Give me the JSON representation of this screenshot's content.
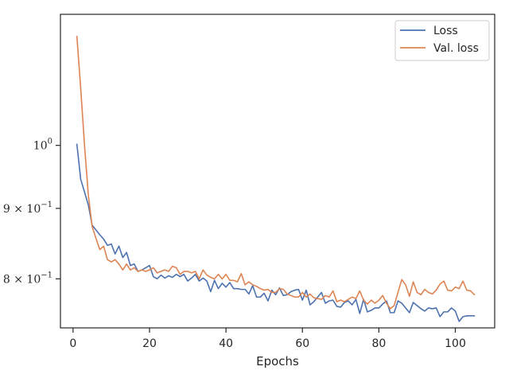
{
  "chart_data": {
    "type": "line",
    "xlabel": "Epochs",
    "ylabel": "",
    "xscale": "linear",
    "yscale": "log",
    "xlim": [
      -3.3,
      110.3
    ],
    "ylim": [
      0.737,
      1.245
    ],
    "xticks": [
      0,
      20,
      40,
      60,
      80,
      100
    ],
    "xtick_labels": [
      "0",
      "20",
      "40",
      "60",
      "80",
      "100"
    ],
    "yticks": [
      {
        "value": 1.0,
        "base": "10",
        "exp": "0",
        "mant": ""
      },
      {
        "value": 0.9,
        "base": "10",
        "exp": "−1",
        "mant": "9 × "
      },
      {
        "value": 0.8,
        "base": "10",
        "exp": "−1",
        "mant": "8 × "
      }
    ],
    "grid": false,
    "legend": "top-right",
    "series": [
      {
        "name": "Loss",
        "color": "#4c72b0",
        "x": [
          1,
          2,
          3,
          4,
          5,
          6,
          7,
          8,
          9,
          10,
          11,
          12,
          13,
          14,
          15,
          16,
          17,
          18,
          19,
          20,
          21,
          22,
          23,
          24,
          25,
          26,
          27,
          28,
          29,
          30,
          31,
          32,
          33,
          34,
          35,
          36,
          37,
          38,
          39,
          40,
          41,
          42,
          43,
          44,
          45,
          46,
          47,
          48,
          49,
          50,
          51,
          52,
          53,
          54,
          55,
          56,
          57,
          58,
          59,
          60,
          61,
          62,
          63,
          64,
          65,
          66,
          67,
          68,
          69,
          70,
          71,
          72,
          73,
          74,
          75,
          76,
          77,
          78,
          79,
          80,
          81,
          82,
          83,
          84,
          85,
          86,
          87,
          88,
          89,
          90,
          91,
          92,
          93,
          94,
          95,
          96,
          97,
          98,
          99,
          100,
          101,
          102,
          103,
          104,
          105
        ],
        "values": [
          1.002,
          0.945,
          0.925,
          0.905,
          0.875,
          0.868,
          0.861,
          0.855,
          0.846,
          0.848,
          0.834,
          0.845,
          0.829,
          0.836,
          0.818,
          0.82,
          0.81,
          0.812,
          0.815,
          0.818,
          0.803,
          0.8,
          0.805,
          0.801,
          0.804,
          0.802,
          0.806,
          0.803,
          0.806,
          0.797,
          0.801,
          0.806,
          0.797,
          0.801,
          0.797,
          0.783,
          0.798,
          0.787,
          0.794,
          0.789,
          0.795,
          0.787,
          0.787,
          0.786,
          0.786,
          0.78,
          0.791,
          0.776,
          0.776,
          0.781,
          0.771,
          0.785,
          0.779,
          0.788,
          0.778,
          0.779,
          0.783,
          0.785,
          0.786,
          0.772,
          0.785,
          0.766,
          0.77,
          0.776,
          0.782,
          0.768,
          0.771,
          0.772,
          0.764,
          0.763,
          0.769,
          0.771,
          0.766,
          0.773,
          0.755,
          0.773,
          0.757,
          0.759,
          0.762,
          0.762,
          0.767,
          0.771,
          0.756,
          0.756,
          0.771,
          0.768,
          0.762,
          0.756,
          0.769,
          0.765,
          0.761,
          0.758,
          0.762,
          0.761,
          0.762,
          0.751,
          0.757,
          0.757,
          0.762,
          0.758,
          0.745,
          0.751,
          0.752,
          0.752,
          0.752
        ]
      },
      {
        "name": "Val. loss",
        "color": "#dd8452",
        "x": [
          1,
          2,
          3,
          4,
          5,
          6,
          7,
          8,
          9,
          10,
          11,
          12,
          13,
          14,
          15,
          16,
          17,
          18,
          19,
          20,
          21,
          22,
          23,
          24,
          25,
          26,
          27,
          28,
          29,
          30,
          31,
          32,
          33,
          34,
          35,
          36,
          37,
          38,
          39,
          40,
          41,
          42,
          43,
          44,
          45,
          46,
          47,
          48,
          49,
          50,
          51,
          52,
          53,
          54,
          55,
          56,
          57,
          58,
          59,
          60,
          61,
          62,
          63,
          64,
          65,
          66,
          67,
          68,
          69,
          70,
          71,
          72,
          73,
          74,
          75,
          76,
          77,
          78,
          79,
          80,
          81,
          82,
          83,
          84,
          85,
          86,
          87,
          88,
          89,
          90,
          91,
          92,
          93,
          94,
          95,
          96,
          97,
          98,
          99,
          100,
          101,
          102,
          103,
          104,
          105
        ],
        "values": [
          1.2,
          1.1,
          1.0,
          0.92,
          0.873,
          0.856,
          0.84,
          0.845,
          0.826,
          0.823,
          0.826,
          0.82,
          0.812,
          0.82,
          0.812,
          0.815,
          0.81,
          0.812,
          0.81,
          0.812,
          0.815,
          0.808,
          0.81,
          0.812,
          0.81,
          0.817,
          0.815,
          0.806,
          0.81,
          0.81,
          0.808,
          0.81,
          0.8,
          0.812,
          0.805,
          0.802,
          0.8,
          0.806,
          0.8,
          0.806,
          0.798,
          0.798,
          0.796,
          0.807,
          0.792,
          0.796,
          0.792,
          0.79,
          0.787,
          0.785,
          0.786,
          0.782,
          0.782,
          0.787,
          0.786,
          0.78,
          0.778,
          0.776,
          0.776,
          0.782,
          0.776,
          0.78,
          0.775,
          0.774,
          0.773,
          0.778,
          0.776,
          0.784,
          0.77,
          0.772,
          0.77,
          0.773,
          0.776,
          0.774,
          0.784,
          0.772,
          0.767,
          0.772,
          0.768,
          0.772,
          0.778,
          0.768,
          0.761,
          0.765,
          0.782,
          0.799,
          0.792,
          0.777,
          0.796,
          0.782,
          0.779,
          0.786,
          0.782,
          0.78,
          0.785,
          0.793,
          0.797,
          0.785,
          0.784,
          0.789,
          0.787,
          0.797,
          0.785,
          0.784,
          0.779
        ]
      }
    ]
  }
}
